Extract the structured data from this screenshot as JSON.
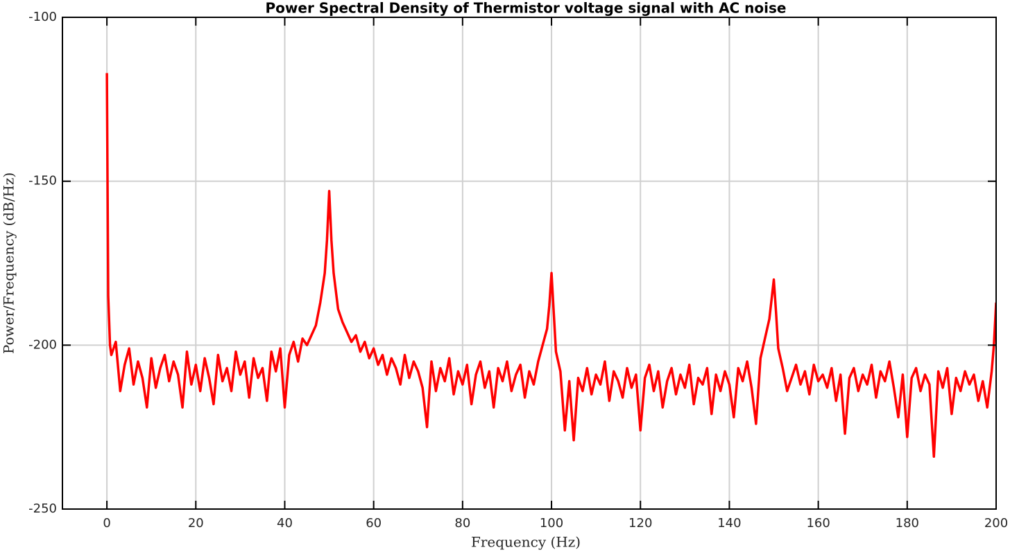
{
  "chart_data": {
    "type": "line",
    "title": "Power Spectral Density of Thermistor voltage signal with AC noise",
    "xlabel": "Frequency (Hz)",
    "ylabel": "Power/Frequency (dB/Hz)",
    "color": "#ff0000",
    "grid": true,
    "xlim": [
      -10,
      200
    ],
    "ylim": [
      -250,
      -100
    ],
    "xticks": [
      0,
      20,
      40,
      60,
      80,
      100,
      120,
      140,
      160,
      180,
      200
    ],
    "yticks": [
      -250,
      -200,
      -150,
      -100
    ],
    "x": [
      0,
      0.3,
      0.7,
      1,
      2,
      3,
      4,
      5,
      6,
      7,
      8,
      9,
      10,
      11,
      12,
      13,
      14,
      15,
      16,
      17,
      18,
      19,
      20,
      21,
      22,
      23,
      24,
      25,
      26,
      27,
      28,
      29,
      30,
      31,
      32,
      33,
      34,
      35,
      36,
      37,
      38,
      39,
      40,
      41,
      42,
      43,
      44,
      45,
      46,
      47,
      48,
      49,
      49.5,
      50,
      50.5,
      51,
      52,
      53,
      54,
      55,
      56,
      57,
      58,
      59,
      60,
      61,
      62,
      63,
      64,
      65,
      66,
      67,
      68,
      69,
      70,
      71,
      72,
      73,
      74,
      75,
      76,
      77,
      78,
      79,
      80,
      81,
      82,
      83,
      84,
      85,
      86,
      87,
      88,
      89,
      90,
      91,
      92,
      93,
      94,
      95,
      96,
      97,
      98,
      99,
      99.5,
      100,
      100.5,
      101,
      102,
      103,
      104,
      105,
      106,
      107,
      108,
      109,
      110,
      111,
      112,
      113,
      114,
      115,
      116,
      117,
      118,
      119,
      120,
      121,
      122,
      123,
      124,
      125,
      126,
      127,
      128,
      129,
      130,
      131,
      132,
      133,
      134,
      135,
      136,
      137,
      138,
      139,
      140,
      141,
      142,
      143,
      144,
      145,
      146,
      147,
      148,
      149,
      149.5,
      150,
      150.5,
      151,
      152,
      153,
      154,
      155,
      156,
      157,
      158,
      159,
      160,
      161,
      162,
      163,
      164,
      165,
      166,
      167,
      168,
      169,
      170,
      171,
      172,
      173,
      174,
      175,
      176,
      177,
      178,
      179,
      180,
      181,
      182,
      183,
      184,
      185,
      186,
      187,
      188,
      189,
      190,
      191,
      192,
      193,
      194,
      195,
      196,
      197,
      198,
      199,
      199.5,
      200
    ],
    "values": [
      -117,
      -185,
      -200,
      -203,
      -199,
      -214,
      -206,
      -201,
      -212,
      -205,
      -210,
      -219,
      -204,
      -213,
      -207,
      -203,
      -211,
      -205,
      -209,
      -219,
      -202,
      -212,
      -206,
      -214,
      -204,
      -210,
      -218,
      -203,
      -211,
      -207,
      -214,
      -202,
      -209,
      -205,
      -216,
      -204,
      -210,
      -207,
      -217,
      -202,
      -208,
      -201,
      -219,
      -203,
      -199,
      -205,
      -198,
      -200,
      -197,
      -194,
      -187,
      -178,
      -168,
      -153,
      -168,
      -178,
      -189,
      -193,
      -196,
      -199,
      -197,
      -202,
      -199,
      -204,
      -201,
      -206,
      -203,
      -209,
      -204,
      -207,
      -212,
      -203,
      -210,
      -205,
      -208,
      -213,
      -225,
      -205,
      -214,
      -207,
      -211,
      -204,
      -215,
      -208,
      -212,
      -206,
      -218,
      -209,
      -205,
      -213,
      -208,
      -219,
      -207,
      -211,
      -205,
      -214,
      -209,
      -206,
      -216,
      -208,
      -212,
      -205,
      -200,
      -195,
      -188,
      -178,
      -190,
      -202,
      -208,
      -226,
      -211,
      -229,
      -210,
      -214,
      -207,
      -215,
      -209,
      -212,
      -205,
      -217,
      -208,
      -211,
      -216,
      -207,
      -213,
      -209,
      -226,
      -210,
      -206,
      -214,
      -208,
      -219,
      -211,
      -207,
      -215,
      -209,
      -213,
      -206,
      -218,
      -210,
      -212,
      -207,
      -221,
      -209,
      -214,
      -208,
      -212,
      -222,
      -207,
      -211,
      -205,
      -213,
      -224,
      -204,
      -198,
      -192,
      -186,
      -180,
      -190,
      -201,
      -207,
      -214,
      -210,
      -206,
      -212,
      -208,
      -215,
      -206,
      -211,
      -209,
      -213,
      -207,
      -217,
      -209,
      -227,
      -210,
      -207,
      -214,
      -209,
      -212,
      -206,
      -216,
      -208,
      -211,
      -205,
      -213,
      -222,
      -209,
      -228,
      -210,
      -207,
      -214,
      -209,
      -212,
      -234,
      -208,
      -213,
      -207,
      -221,
      -210,
      -214,
      -208,
      -212,
      -209,
      -217,
      -211,
      -219,
      -208,
      -200,
      -187
    ]
  }
}
